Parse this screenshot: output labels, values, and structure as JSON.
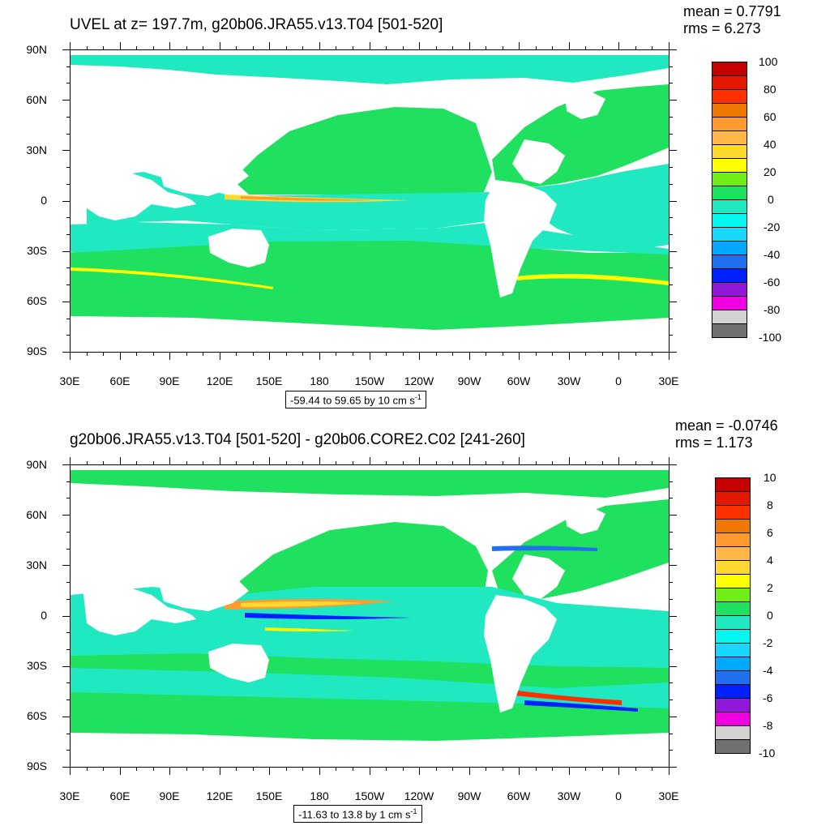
{
  "panels": [
    {
      "title": "UVEL at z= 197.7m, g20b06.JRA55.v13.T04 [501-520]",
      "mean": "mean = 0.7791",
      "rms": "rms = 6.273",
      "range_text": "-59.44 to 59.65 by 10 cm s",
      "range_unit_exp": "-1",
      "colorbar": {
        "labels": [
          "100",
          "80",
          "60",
          "40",
          "20",
          "0",
          "-20",
          "-40",
          "-60",
          "-80",
          "-100"
        ],
        "colors": [
          "#c40000",
          "#e21800",
          "#ff3000",
          "#f07800",
          "#ff9a30",
          "#ffb848",
          "#ffd830",
          "#ffff00",
          "#70ee18",
          "#20e060",
          "#20e8c0",
          "#00f8f0",
          "#18d8ff",
          "#00a8ff",
          "#2070f0",
          "#0020ff",
          "#9018d8",
          "#f000e0",
          "#d2d2d2",
          "#707070"
        ]
      }
    },
    {
      "title": "g20b06.JRA55.v13.T04 [501-520] - g20b06.CORE2.C02 [241-260]",
      "mean": "mean = -0.0746",
      "rms": "rms = 1.173",
      "range_text": "-11.63 to 13.8 by 1 cm s",
      "range_unit_exp": "-1",
      "colorbar": {
        "labels": [
          "10",
          "8",
          "6",
          "4",
          "2",
          "0",
          "-2",
          "-4",
          "-6",
          "-8",
          "-10"
        ],
        "colors": [
          "#c40000",
          "#e21800",
          "#ff3000",
          "#f07800",
          "#ff9a30",
          "#ffb848",
          "#ffd830",
          "#ffff00",
          "#70ee18",
          "#20e060",
          "#20e8c0",
          "#00f8f0",
          "#18d8ff",
          "#00a8ff",
          "#2070f0",
          "#0020ff",
          "#9018d8",
          "#f000e0",
          "#d2d2d2",
          "#707070"
        ]
      }
    }
  ],
  "lat_labels": [
    "90N",
    "60N",
    "30N",
    "0",
    "30S",
    "60S",
    "90S"
  ],
  "lon_labels": [
    "30E",
    "60E",
    "90E",
    "120E",
    "150E",
    "180",
    "150W",
    "120W",
    "90W",
    "60W",
    "30W",
    "0",
    "30E"
  ]
}
